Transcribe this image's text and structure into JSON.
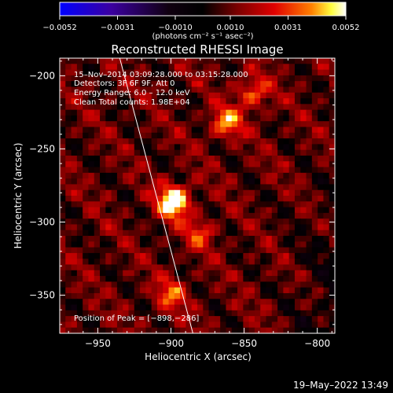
{
  "chart_data": {
    "type": "heatmap",
    "title": "Reconstructed RHESSI Image",
    "xlabel": "Heliocentric X (arcsec)",
    "ylabel": "Heliocentric Y (arcsec)",
    "xlim": [
      -976,
      -788
    ],
    "ylim": [
      -376,
      -188
    ],
    "x_ticks": [
      -950,
      -900,
      -850,
      -800
    ],
    "x_tick_labels": [
      "−950",
      "−900",
      "−850",
      "−800"
    ],
    "y_ticks": [
      -200,
      -250,
      -300,
      -350
    ],
    "y_tick_labels": [
      "−200",
      "−250",
      "−300",
      "−350"
    ],
    "colorbar": {
      "min": -0.0052,
      "max": 0.0052,
      "ticks": [
        -0.0052,
        -0.0031,
        -0.001,
        0.001,
        0.0031,
        0.0052
      ],
      "tick_labels": [
        "−0.0052",
        "−0.0031",
        "−0.0010",
        "0.0010",
        "0.0031",
        "0.0052"
      ],
      "units_label": "(photons cm⁻² s⁻¹ asec⁻²)",
      "colors": [
        "#0000ff",
        "#3b00a0",
        "#000000",
        "#7a0000",
        "#e00000",
        "#ff8000",
        "#ffff40",
        "#ffffff"
      ]
    },
    "annotations": [
      "15–Nov–2014 03:09:28.000 to 03:15:28.000",
      "Detectors: 3F 6F 9F, Att 0",
      "Energy Range: 6.0 – 12.0 keV",
      "Clean    Total counts: 1.98E+04"
    ],
    "peak_label": "Position of Peak = [−898,−286]",
    "peak": [
      -898,
      -286
    ],
    "sources": [
      {
        "x": -898,
        "y": -286,
        "intensity": 0.0052
      },
      {
        "x": -862,
        "y": -232,
        "intensity": 0.0031
      },
      {
        "x": -844,
        "y": -212,
        "intensity": 0.0026
      },
      {
        "x": -900,
        "y": -350,
        "intensity": 0.0024
      },
      {
        "x": -880,
        "y": -308,
        "intensity": 0.002
      }
    ],
    "limb_line": {
      "x": [
        -935,
        -885
      ],
      "y": [
        -188,
        -376
      ]
    },
    "footer_date": "19–May–2022 13:49"
  }
}
